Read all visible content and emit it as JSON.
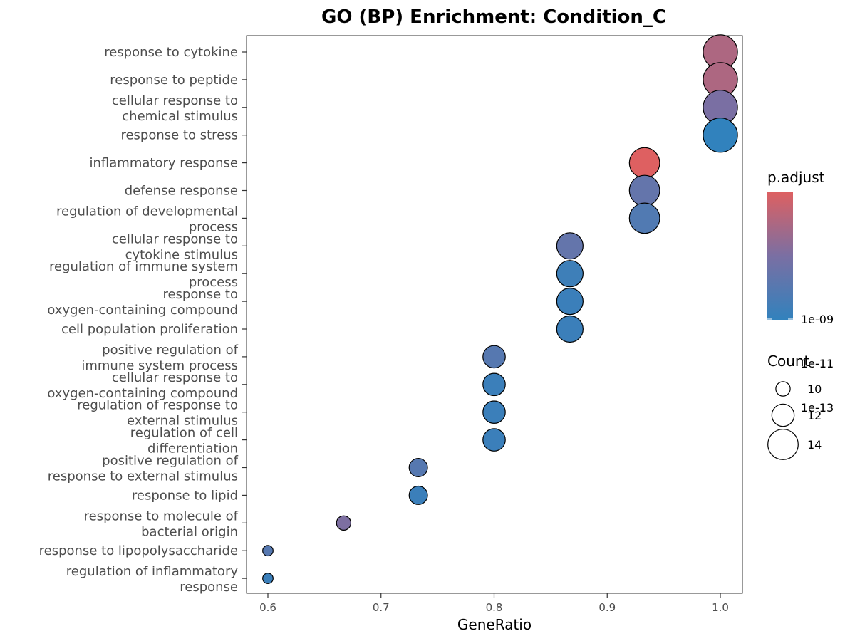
{
  "chart_data": {
    "type": "scatter",
    "title": "GO (BP) Enrichment: Condition_C",
    "xlabel": "GeneRatio",
    "ylabel": "",
    "xlim": [
      0.58,
      1.02
    ],
    "xticks": [
      "0.6",
      "0.7",
      "0.8",
      "0.9",
      "1.0"
    ],
    "grid": false,
    "legend_position": "right",
    "color_legend": {
      "title": "p.adjust",
      "scale": "log",
      "low_color": "#3182bd",
      "mid_color": "#7a6fa3",
      "high_color": "#de6061",
      "ticks": [
        "1e-13",
        "1e-11",
        "1e-09"
      ]
    },
    "size_legend": {
      "title": "Count",
      "values": [
        10,
        12,
        14
      ]
    },
    "points": [
      {
        "term": "response to cytokine",
        "gene_ratio": 1.0,
        "count": 15,
        "p_adjust": 3e-14
      },
      {
        "term": "response to peptide",
        "gene_ratio": 1.0,
        "count": 15,
        "p_adjust": 3e-14
      },
      {
        "term": "cellular response to\nchemical stimulus",
        "gene_ratio": 1.0,
        "count": 15,
        "p_adjust": 1e-12
      },
      {
        "term": "response to stress",
        "gene_ratio": 1.0,
        "count": 15,
        "p_adjust": 1e-09
      },
      {
        "term": "inflammatory response",
        "gene_ratio": 0.933,
        "count": 14,
        "p_adjust": 1e-15
      },
      {
        "term": "defense response",
        "gene_ratio": 0.933,
        "count": 14,
        "p_adjust": 8e-12
      },
      {
        "term": "regulation of developmental\nprocess",
        "gene_ratio": 0.933,
        "count": 14,
        "p_adjust": 5e-11
      },
      {
        "term": "cellular response to\ncytokine stimulus",
        "gene_ratio": 0.867,
        "count": 13,
        "p_adjust": 8e-12
      },
      {
        "term": "regulation of immune system\nprocess",
        "gene_ratio": 0.867,
        "count": 13,
        "p_adjust": 3e-10
      },
      {
        "term": "response to\noxygen-containing compound",
        "gene_ratio": 0.867,
        "count": 13,
        "p_adjust": 4e-10
      },
      {
        "term": "cell population proliferation",
        "gene_ratio": 0.867,
        "count": 13,
        "p_adjust": 4e-10
      },
      {
        "term": "positive regulation of\nimmune system process",
        "gene_ratio": 0.8,
        "count": 12,
        "p_adjust": 3e-11
      },
      {
        "term": "cellular response to\noxygen-containing compound",
        "gene_ratio": 0.8,
        "count": 12,
        "p_adjust": 4e-10
      },
      {
        "term": "regulation of response to\nexternal stimulus",
        "gene_ratio": 0.8,
        "count": 12,
        "p_adjust": 4e-10
      },
      {
        "term": "regulation of cell\ndifferentiation",
        "gene_ratio": 0.8,
        "count": 12,
        "p_adjust": 4e-10
      },
      {
        "term": "positive regulation of\nresponse to external stimulus",
        "gene_ratio": 0.733,
        "count": 11,
        "p_adjust": 3e-11
      },
      {
        "term": "response to lipid",
        "gene_ratio": 0.733,
        "count": 11,
        "p_adjust": 4e-10
      },
      {
        "term": "response to molecule of\nbacterial origin",
        "gene_ratio": 0.667,
        "count": 10,
        "p_adjust": 8e-13
      },
      {
        "term": "response to lipopolysaccharide",
        "gene_ratio": 0.6,
        "count": 9,
        "p_adjust": 3e-11
      },
      {
        "term": "regulation of inflammatory\nresponse",
        "gene_ratio": 0.6,
        "count": 9,
        "p_adjust": 4e-10
      }
    ]
  }
}
